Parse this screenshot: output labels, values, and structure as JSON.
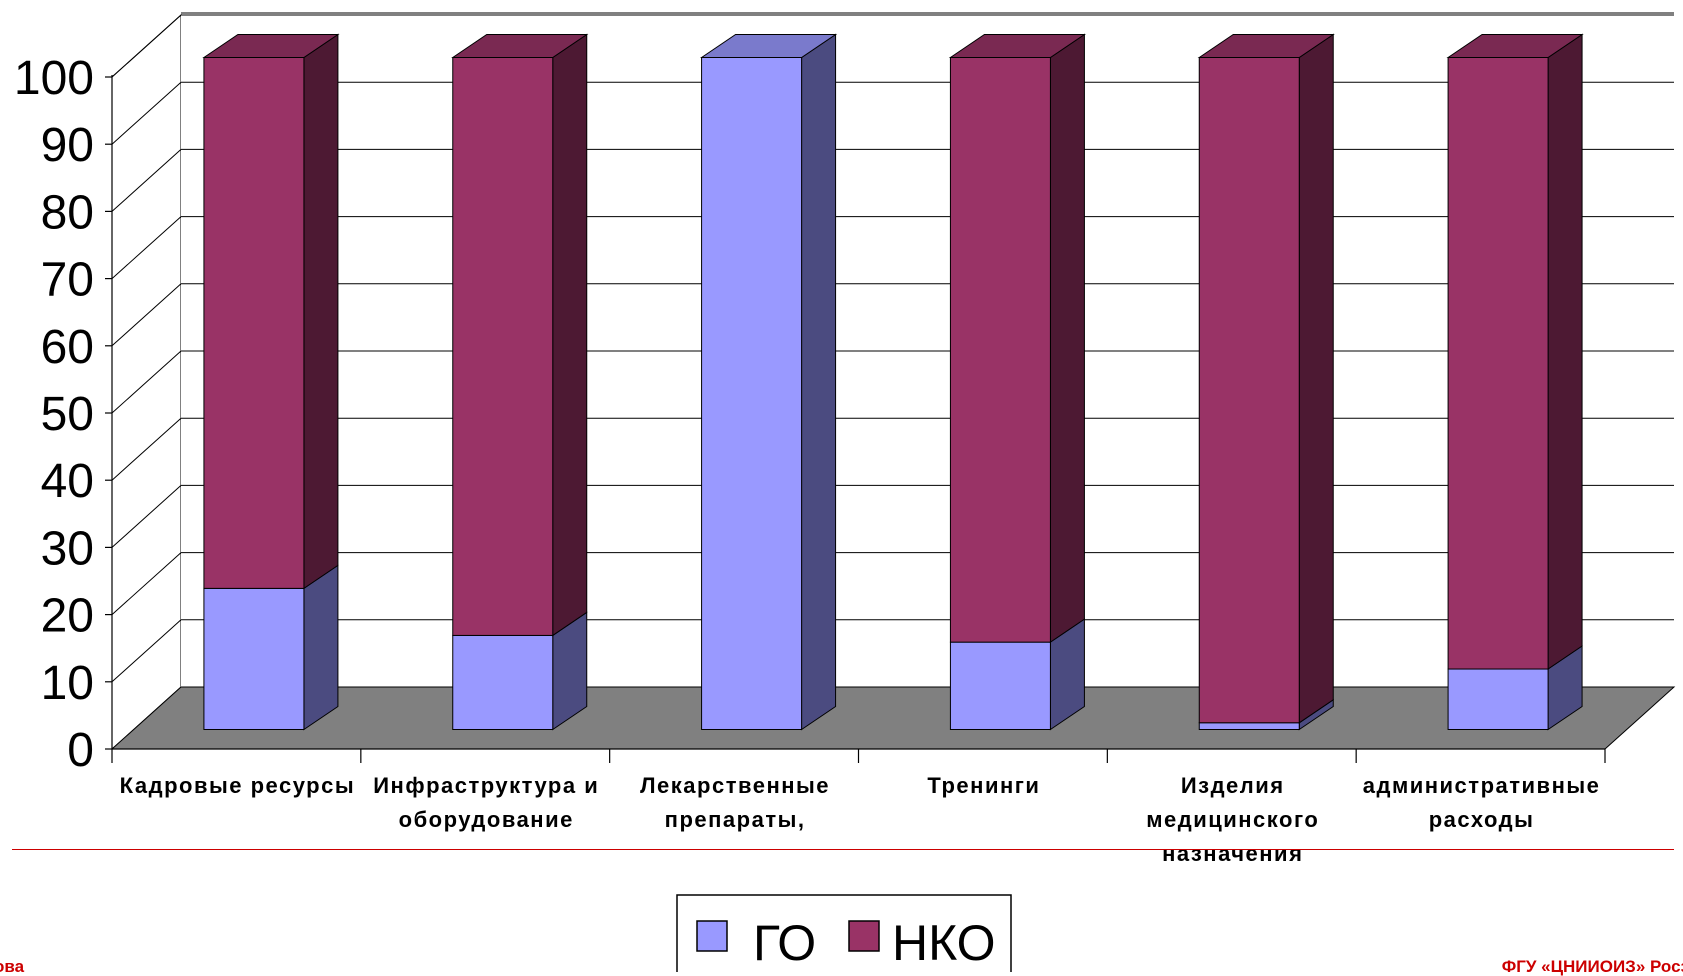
{
  "chart_data": {
    "type": "bar",
    "stacked": true,
    "three_d": true,
    "categories": [
      [
        "Кадровые ресурсы"
      ],
      [
        "Инфраструктура и",
        "оборудование"
      ],
      [
        "Лекарственные",
        "препараты,"
      ],
      [
        "Тренинги"
      ],
      [
        "Изделия",
        "медицинского",
        "назначения"
      ],
      [
        "административные",
        "расходы"
      ]
    ],
    "series": [
      {
        "name": "ГО",
        "color": "#9999ff",
        "side_color": "#4b4b80",
        "top_color": "#7a7acc",
        "values": [
          21,
          14,
          100,
          13,
          1,
          9
        ]
      },
      {
        "name": "НКО",
        "color": "#993366",
        "side_color": "#4d1933",
        "top_color": "#7a2952",
        "values": [
          79,
          86,
          0,
          87,
          99,
          91
        ]
      }
    ],
    "ylim": [
      0,
      100
    ],
    "yticks": [
      "0",
      "10",
      "20",
      "30",
      "40",
      "50",
      "60",
      "70",
      "80",
      "90",
      "100"
    ],
    "grid": true,
    "floor_color": "#808080",
    "legend_position": "bottom-center"
  },
  "footer": {
    "left": "ова",
    "right": "ФГУ «ЦНИИОИЗ» Росз"
  }
}
